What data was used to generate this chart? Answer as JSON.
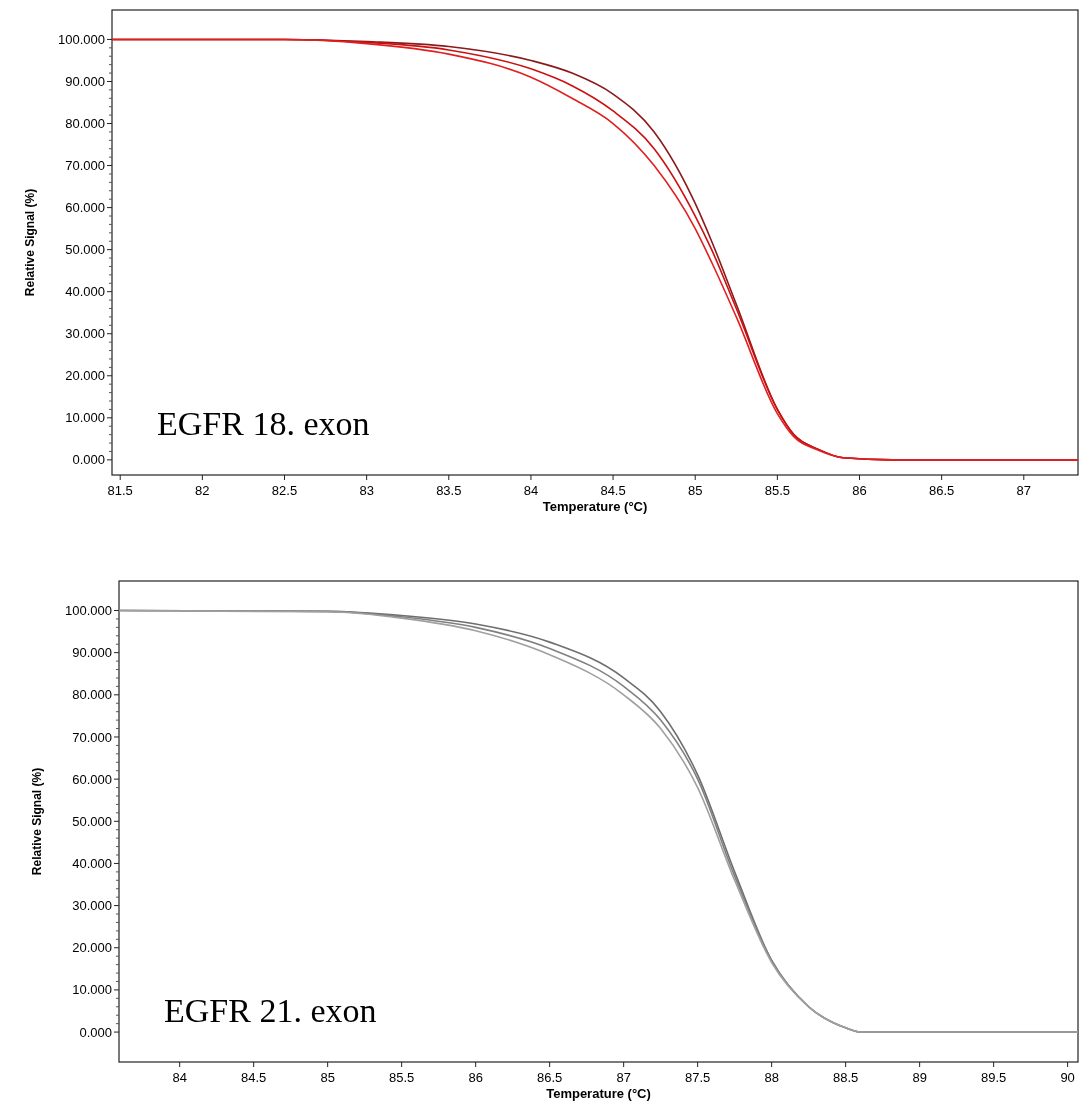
{
  "chart_data": [
    {
      "type": "line",
      "xlabel": "Temperature (°C)",
      "ylabel": "Relative Signal (%)",
      "annotations": [
        "EGFR 18. exon"
      ],
      "xlim": [
        81.45,
        87.33
      ],
      "ylim": [
        -3.6,
        107
      ],
      "xticks": [
        81.5,
        82,
        82.5,
        83,
        83.5,
        84,
        84.5,
        85,
        85.5,
        86,
        86.5,
        87
      ],
      "yticks": [
        {
          "value": 0,
          "label": "0.000"
        },
        {
          "value": 10,
          "label": "10.000"
        },
        {
          "value": 20,
          "label": "20.000"
        },
        {
          "value": 30,
          "label": "30.000"
        },
        {
          "value": 40,
          "label": "40.000"
        },
        {
          "value": 50,
          "label": "50.000"
        },
        {
          "value": 60,
          "label": "60.000"
        },
        {
          "value": 70,
          "label": "70.000"
        },
        {
          "value": 80,
          "label": "80.000"
        },
        {
          "value": 90,
          "label": "90.000"
        },
        {
          "value": 100,
          "label": "100.000"
        }
      ],
      "grid": false,
      "line_style": "solid",
      "series": [
        {
          "color": "#8b1a1a",
          "x": [
            81.45,
            82.5,
            83,
            83.5,
            84,
            84.25,
            84.5,
            84.75,
            85,
            85.1,
            85.25,
            85.5,
            85.6,
            85.75,
            85.9,
            86.2,
            87.33
          ],
          "values": [
            100,
            100,
            99.5,
            98.3,
            95,
            92,
            87,
            78,
            61,
            52,
            37,
            12,
            6,
            2.5,
            0.5,
            0,
            0
          ]
        },
        {
          "color": "#cc1010",
          "x": [
            81.45,
            82.5,
            83,
            83.5,
            84,
            84.25,
            84.5,
            84.75,
            85,
            85.1,
            85.25,
            85.5,
            85.6,
            85.75,
            85.9,
            86.2,
            87.33
          ],
          "values": [
            100,
            100,
            99.3,
            97.5,
            93,
            89,
            83,
            74,
            58,
            50,
            36,
            12,
            6,
            2.5,
            0.5,
            0,
            0
          ]
        },
        {
          "color": "#e02020",
          "x": [
            81.45,
            82.5,
            83,
            83.5,
            84,
            84.25,
            84.5,
            84.75,
            85,
            85.1,
            85.25,
            85.5,
            85.6,
            85.75,
            85.9,
            86.2,
            87.33
          ],
          "values": [
            100,
            100,
            99,
            96.5,
            91,
            86,
            80,
            70,
            55,
            47,
            34,
            11,
            5.5,
            2.3,
            0.5,
            0,
            0
          ]
        }
      ]
    },
    {
      "type": "line",
      "xlabel": "Temperature (°C)",
      "ylabel": "Relative Signal (%)",
      "annotations": [
        "EGFR 21. exon"
      ],
      "xlim": [
        83.59,
        90.07
      ],
      "ylim": [
        -7.1,
        107
      ],
      "xticks": [
        84,
        84.5,
        85,
        85.5,
        86,
        86.5,
        87,
        87.5,
        88,
        88.5,
        89,
        89.5,
        90
      ],
      "yticks": [
        {
          "value": 0,
          "label": "0.000"
        },
        {
          "value": 10,
          "label": "10.000"
        },
        {
          "value": 20,
          "label": "20.000"
        },
        {
          "value": 30,
          "label": "30.000"
        },
        {
          "value": 40,
          "label": "40.000"
        },
        {
          "value": 50,
          "label": "50.000"
        },
        {
          "value": 60,
          "label": "60.000"
        },
        {
          "value": 70,
          "label": "70.000"
        },
        {
          "value": 80,
          "label": "80.000"
        },
        {
          "value": 90,
          "label": "90.000"
        },
        {
          "value": 100,
          "label": "100.000"
        }
      ],
      "grid": false,
      "line_style": "solid",
      "series": [
        {
          "color": "#6e6e6e",
          "x": [
            83.59,
            85,
            85.5,
            86,
            86.5,
            87,
            87.25,
            87.5,
            87.75,
            88,
            88.25,
            88.5,
            88.6,
            90.07
          ],
          "values": [
            100,
            99.8,
            98.8,
            96.8,
            92.5,
            84,
            76,
            61,
            38,
            17,
            6,
            1,
            0,
            0
          ]
        },
        {
          "color": "#808080",
          "x": [
            83.59,
            85,
            85.5,
            86,
            86.5,
            87,
            87.25,
            87.5,
            87.75,
            88,
            88.25,
            88.5,
            88.6,
            90.07
          ],
          "values": [
            100,
            99.8,
            98.5,
            96,
            91,
            82,
            74,
            60,
            37,
            17,
            6,
            1,
            0,
            0
          ]
        },
        {
          "color": "#a0a0a0",
          "x": [
            83.59,
            85,
            85.5,
            86,
            86.5,
            87,
            87.25,
            87.5,
            87.75,
            88,
            88.25,
            88.5,
            88.6,
            90.07
          ],
          "values": [
            100,
            99.7,
            98.2,
            95.2,
            89.5,
            80,
            72,
            58,
            36,
            16.5,
            6,
            1,
            0,
            0
          ]
        }
      ]
    }
  ]
}
